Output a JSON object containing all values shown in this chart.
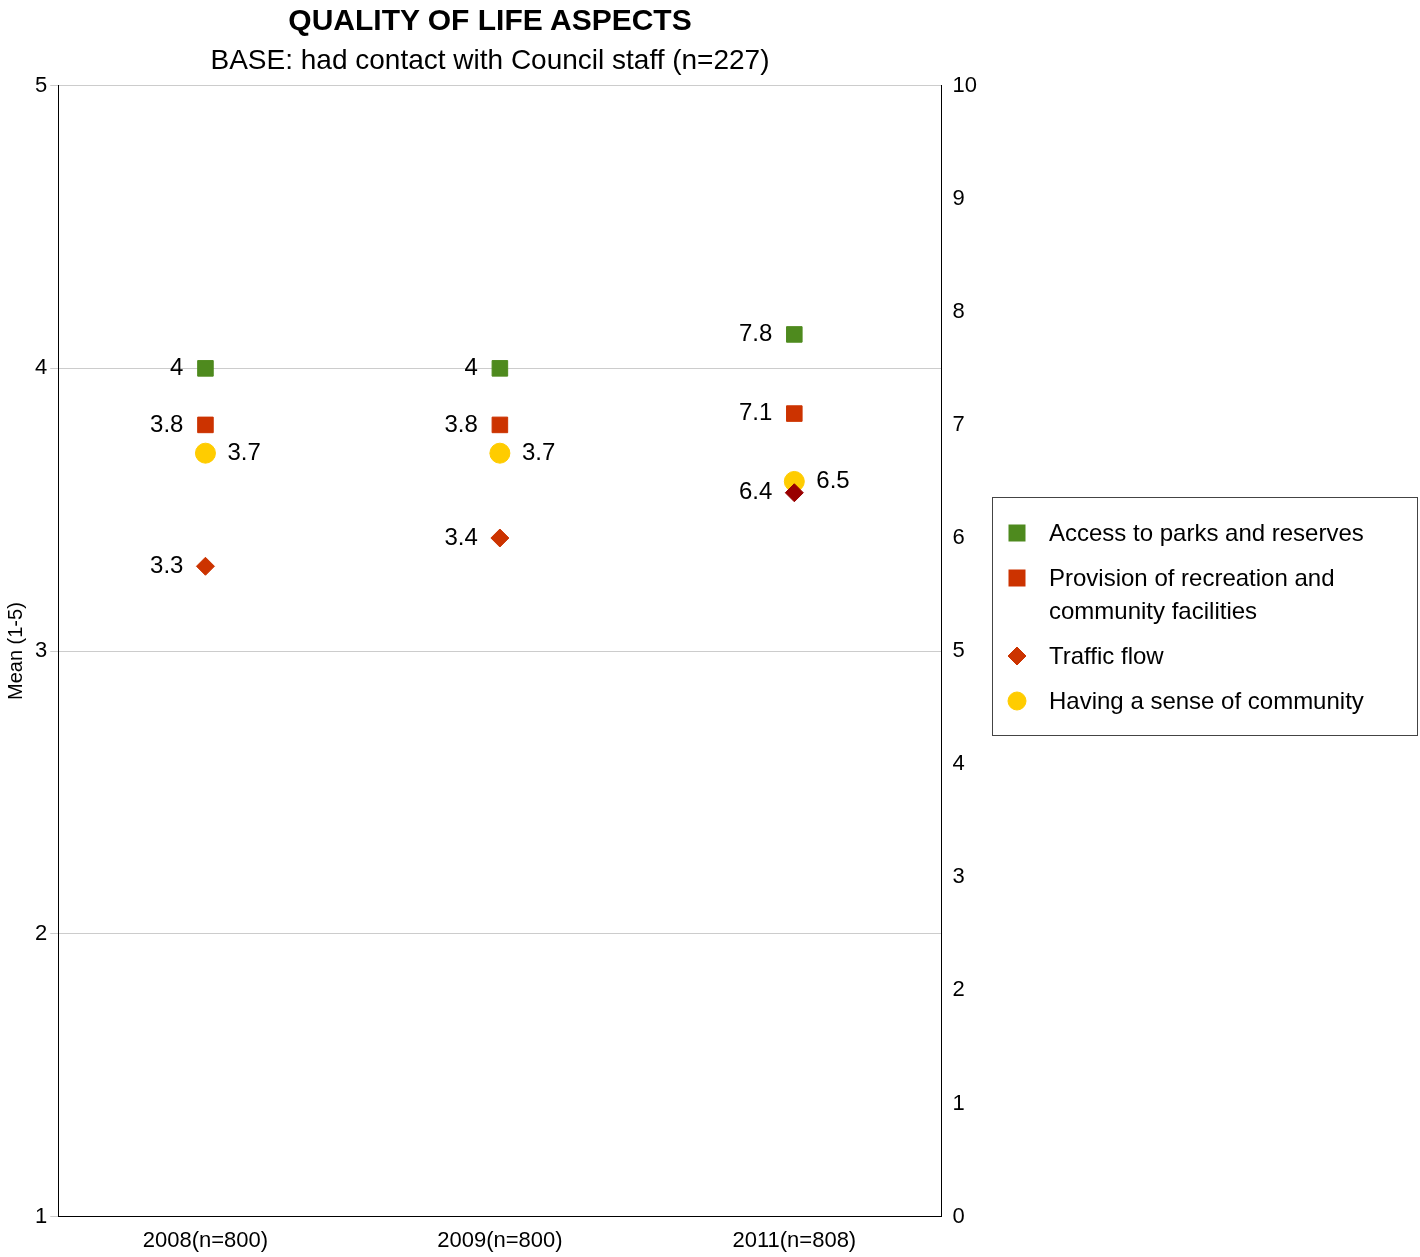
{
  "chart_data": {
    "type": "scatter",
    "title": "QUALITY OF LIFE ASPECTS",
    "subtitle": "BASE: had contact with Council staff (n=227)",
    "ylabel": "Mean (1-5)",
    "categories": [
      "2008(n=800)",
      "2009(n=800)",
      "2011(n=808)"
    ],
    "series": [
      {
        "name": "Access to parks and reserves",
        "color": "#4e8a1e",
        "marker": "square",
        "values": [
          4,
          4,
          null
        ]
      },
      {
        "name": "Provision of recreation and community facilities",
        "color": "#cc3300",
        "marker": "square",
        "values": [
          3.8,
          3.8,
          null
        ]
      },
      {
        "name": "Traffic flow",
        "color": "#cc3300",
        "marker": "diamond",
        "values": [
          3.3,
          3.4,
          null
        ]
      },
      {
        "name": "Having a sense of community",
        "color": "#ffcc00",
        "marker": "circle",
        "values": [
          3.7,
          3.7,
          null
        ]
      },
      {
        "color": "#4e8a1e",
        "marker": "square",
        "axis": "y2",
        "values": [
          null,
          null,
          7.8
        ]
      },
      {
        "color": "#cc3300",
        "marker": "square",
        "axis": "y2",
        "values": [
          null,
          null,
          7.1
        ]
      },
      {
        "color": "#990000",
        "marker": "diamond",
        "axis": "y2",
        "values": [
          null,
          null,
          6.4
        ]
      },
      {
        "color": "#ffcc00",
        "marker": "circle",
        "axis": "y2",
        "values": [
          null,
          null,
          6.5
        ]
      }
    ],
    "ylim": [
      1,
      5
    ],
    "yticks": [
      1,
      2,
      3,
      4,
      5
    ],
    "y2lim": [
      0,
      10
    ],
    "y2ticks": [
      0,
      1,
      2,
      3,
      4,
      5,
      6,
      7,
      8,
      9,
      10
    ],
    "grid": "y",
    "legend": "right",
    "data_labels": true
  }
}
